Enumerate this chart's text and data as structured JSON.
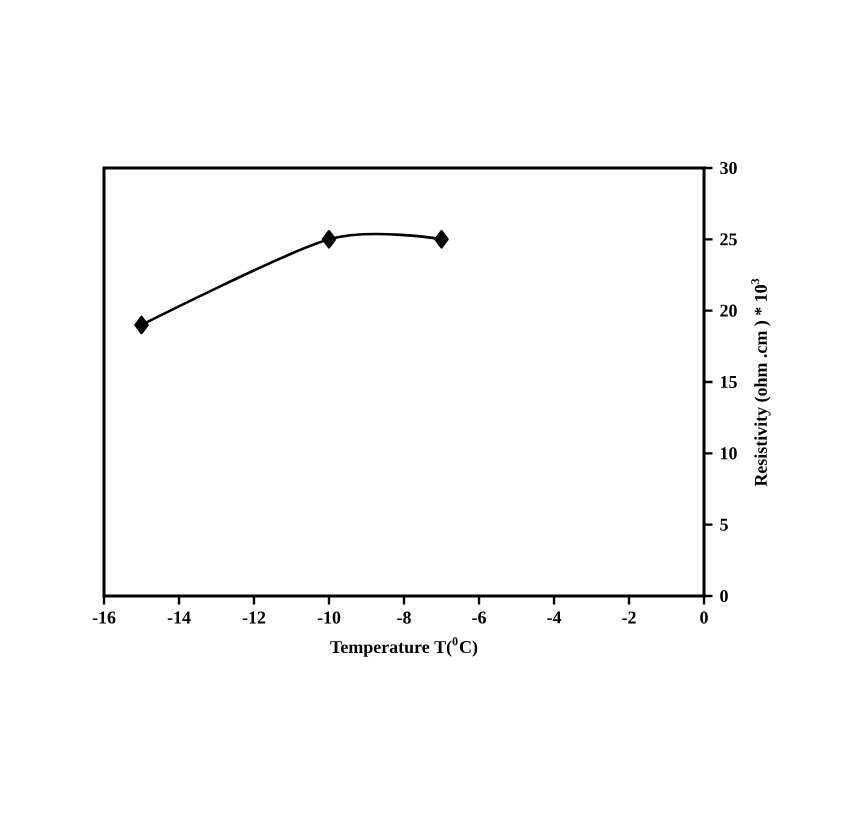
{
  "chart_data": {
    "type": "line",
    "xlabel": "Temperature T($^{0}$C)",
    "ylabel": "Resistivity (ohm .cm ) * 10$^{3}$",
    "x": [
      -15,
      -10,
      -7
    ],
    "series": [
      {
        "color": "#000000",
        "values": [
          19,
          25,
          25
        ]
      }
    ],
    "xlim": [
      -16,
      0
    ],
    "xticks": [
      -16,
      -14,
      -12,
      -10,
      -8,
      -6,
      -4,
      -2,
      0
    ],
    "ylim": [
      0,
      30
    ],
    "yticks": [
      0,
      5,
      10,
      15,
      20,
      25,
      30
    ],
    "marker": "diamond",
    "line_style": "solid",
    "grid": false
  }
}
